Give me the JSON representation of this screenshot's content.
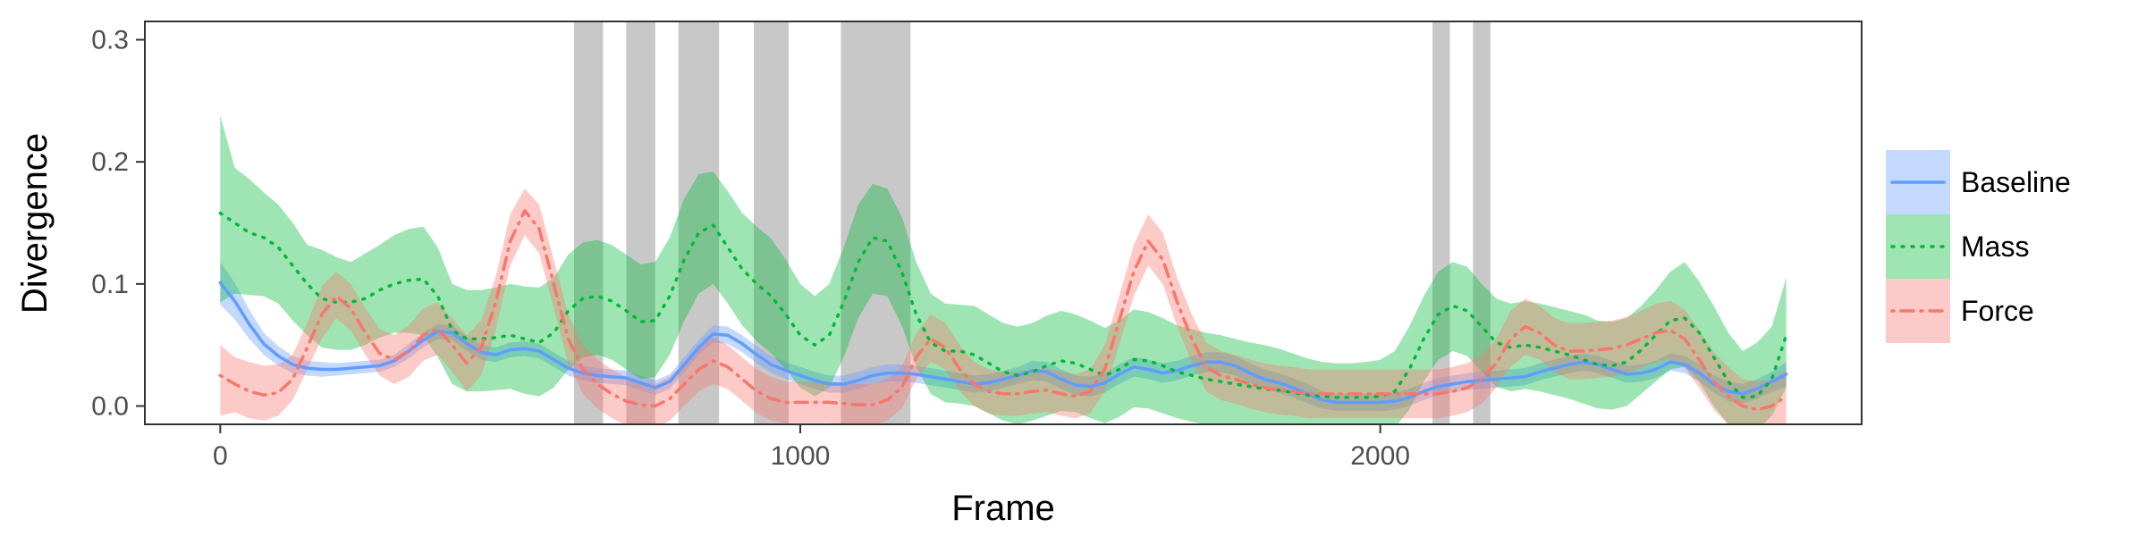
{
  "chart_data": {
    "type": "line",
    "xlabel": "Frame",
    "ylabel": "Divergence",
    "xlim": [
      -130,
      2830
    ],
    "ylim": [
      -0.015,
      0.315
    ],
    "x_ticks": [
      0,
      1000,
      2000
    ],
    "x_tick_labels": [
      "0",
      "1000",
      "2000"
    ],
    "y_ticks": [
      0.0,
      0.1,
      0.2,
      0.3
    ],
    "y_tick_labels": [
      "0.0",
      "0.1",
      "0.2",
      "0.3"
    ],
    "grid": false,
    "legend_position": "right",
    "shaded_regions": [
      [
        610,
        660
      ],
      [
        700,
        750
      ],
      [
        790,
        860
      ],
      [
        920,
        980
      ],
      [
        1070,
        1190
      ],
      [
        2090,
        2120
      ],
      [
        2160,
        2190
      ]
    ],
    "shade_color": "#c8c8c8",
    "x": [
      0,
      25,
      50,
      75,
      100,
      125,
      150,
      175,
      200,
      225,
      250,
      275,
      300,
      325,
      350,
      375,
      400,
      425,
      450,
      475,
      500,
      525,
      550,
      575,
      600,
      625,
      650,
      675,
      700,
      725,
      750,
      775,
      800,
      825,
      850,
      875,
      900,
      925,
      950,
      975,
      1000,
      1025,
      1050,
      1075,
      1100,
      1125,
      1150,
      1175,
      1200,
      1225,
      1250,
      1275,
      1300,
      1325,
      1350,
      1375,
      1400,
      1425,
      1450,
      1475,
      1500,
      1525,
      1550,
      1575,
      1600,
      1625,
      1650,
      1675,
      1700,
      1725,
      1750,
      1775,
      1800,
      1825,
      1850,
      1875,
      1900,
      1925,
      1950,
      1975,
      2000,
      2025,
      2050,
      2075,
      2100,
      2125,
      2150,
      2175,
      2200,
      2225,
      2250,
      2275,
      2300,
      2325,
      2350,
      2375,
      2400,
      2425,
      2450,
      2475,
      2500,
      2525,
      2550,
      2575,
      2600,
      2625,
      2650,
      2675,
      2700
    ],
    "series": [
      {
        "name": "Baseline",
        "color": "#619cff",
        "line_style": "solid",
        "values": [
          0.101,
          0.086,
          0.067,
          0.051,
          0.041,
          0.034,
          0.031,
          0.03,
          0.03,
          0.031,
          0.032,
          0.033,
          0.037,
          0.045,
          0.054,
          0.061,
          0.06,
          0.051,
          0.044,
          0.042,
          0.046,
          0.047,
          0.045,
          0.038,
          0.031,
          0.027,
          0.025,
          0.024,
          0.023,
          0.019,
          0.015,
          0.02,
          0.034,
          0.048,
          0.059,
          0.058,
          0.051,
          0.042,
          0.034,
          0.029,
          0.025,
          0.021,
          0.018,
          0.018,
          0.021,
          0.025,
          0.027,
          0.027,
          0.026,
          0.024,
          0.022,
          0.02,
          0.018,
          0.019,
          0.022,
          0.025,
          0.029,
          0.028,
          0.022,
          0.017,
          0.016,
          0.019,
          0.026,
          0.032,
          0.03,
          0.027,
          0.029,
          0.033,
          0.036,
          0.036,
          0.033,
          0.027,
          0.022,
          0.019,
          0.015,
          0.01,
          0.005,
          0.003,
          0.003,
          0.003,
          0.003,
          0.004,
          0.007,
          0.012,
          0.016,
          0.018,
          0.02,
          0.021,
          0.022,
          0.023,
          0.024,
          0.028,
          0.031,
          0.034,
          0.036,
          0.034,
          0.03,
          0.026,
          0.027,
          0.03,
          0.036,
          0.034,
          0.027,
          0.018,
          0.012,
          0.01,
          0.014,
          0.02,
          0.026
        ],
        "lower": [
          0.083,
          0.071,
          0.055,
          0.042,
          0.033,
          0.027,
          0.025,
          0.024,
          0.025,
          0.026,
          0.027,
          0.028,
          0.032,
          0.039,
          0.048,
          0.055,
          0.054,
          0.045,
          0.038,
          0.036,
          0.04,
          0.041,
          0.039,
          0.032,
          0.025,
          0.021,
          0.019,
          0.018,
          0.017,
          0.013,
          0.009,
          0.014,
          0.028,
          0.042,
          0.052,
          0.051,
          0.044,
          0.035,
          0.027,
          0.022,
          0.018,
          0.014,
          0.011,
          0.011,
          0.014,
          0.018,
          0.02,
          0.02,
          0.019,
          0.017,
          0.015,
          0.013,
          0.011,
          0.012,
          0.015,
          0.018,
          0.021,
          0.02,
          0.014,
          0.009,
          0.008,
          0.011,
          0.018,
          0.024,
          0.022,
          0.019,
          0.021,
          0.025,
          0.028,
          0.028,
          0.025,
          0.019,
          0.014,
          0.011,
          0.007,
          0.002,
          -0.002,
          -0.004,
          -0.004,
          -0.004,
          -0.004,
          -0.003,
          0.0,
          0.005,
          0.009,
          0.011,
          0.013,
          0.014,
          0.015,
          0.016,
          0.017,
          0.021,
          0.024,
          0.027,
          0.029,
          0.027,
          0.023,
          0.019,
          0.02,
          0.023,
          0.029,
          0.027,
          0.02,
          0.011,
          0.004,
          0.002,
          0.006,
          0.012,
          0.016
        ],
        "upper": [
          0.118,
          0.101,
          0.079,
          0.06,
          0.049,
          0.041,
          0.037,
          0.036,
          0.035,
          0.036,
          0.037,
          0.038,
          0.042,
          0.051,
          0.06,
          0.067,
          0.066,
          0.057,
          0.05,
          0.048,
          0.052,
          0.053,
          0.051,
          0.044,
          0.037,
          0.033,
          0.031,
          0.03,
          0.029,
          0.025,
          0.021,
          0.026,
          0.04,
          0.054,
          0.066,
          0.065,
          0.058,
          0.049,
          0.041,
          0.036,
          0.032,
          0.028,
          0.025,
          0.025,
          0.028,
          0.032,
          0.034,
          0.034,
          0.033,
          0.031,
          0.029,
          0.027,
          0.025,
          0.026,
          0.029,
          0.032,
          0.037,
          0.036,
          0.03,
          0.025,
          0.024,
          0.027,
          0.034,
          0.04,
          0.038,
          0.035,
          0.037,
          0.041,
          0.044,
          0.044,
          0.041,
          0.035,
          0.03,
          0.027,
          0.023,
          0.018,
          0.012,
          0.01,
          0.01,
          0.01,
          0.01,
          0.011,
          0.014,
          0.019,
          0.023,
          0.025,
          0.027,
          0.028,
          0.029,
          0.03,
          0.031,
          0.035,
          0.038,
          0.041,
          0.043,
          0.041,
          0.037,
          0.033,
          0.034,
          0.037,
          0.043,
          0.041,
          0.034,
          0.025,
          0.02,
          0.018,
          0.022,
          0.028,
          0.036
        ]
      },
      {
        "name": "Mass",
        "color": "#00ba38",
        "line_style": "dotted",
        "values": [
          0.158,
          0.15,
          0.142,
          0.138,
          0.13,
          0.115,
          0.1,
          0.088,
          0.085,
          0.085,
          0.088,
          0.095,
          0.1,
          0.103,
          0.104,
          0.09,
          0.062,
          0.055,
          0.055,
          0.056,
          0.058,
          0.055,
          0.052,
          0.06,
          0.078,
          0.088,
          0.09,
          0.086,
          0.078,
          0.069,
          0.07,
          0.09,
          0.12,
          0.142,
          0.148,
          0.13,
          0.112,
          0.1,
          0.09,
          0.075,
          0.058,
          0.05,
          0.058,
          0.085,
          0.118,
          0.138,
          0.135,
          0.11,
          0.075,
          0.052,
          0.045,
          0.045,
          0.042,
          0.035,
          0.028,
          0.025,
          0.028,
          0.033,
          0.037,
          0.035,
          0.03,
          0.025,
          0.03,
          0.038,
          0.037,
          0.033,
          0.028,
          0.025,
          0.022,
          0.02,
          0.018,
          0.016,
          0.014,
          0.013,
          0.011,
          0.009,
          0.008,
          0.007,
          0.007,
          0.007,
          0.008,
          0.012,
          0.03,
          0.055,
          0.075,
          0.082,
          0.078,
          0.065,
          0.052,
          0.048,
          0.05,
          0.048,
          0.045,
          0.042,
          0.038,
          0.034,
          0.033,
          0.036,
          0.046,
          0.058,
          0.07,
          0.072,
          0.06,
          0.04,
          0.02,
          0.007,
          0.008,
          0.022,
          0.058
        ],
        "lower": [
          0.085,
          0.092,
          0.091,
          0.09,
          0.084,
          0.07,
          0.058,
          0.048,
          0.046,
          0.046,
          0.05,
          0.056,
          0.06,
          0.06,
          0.058,
          0.04,
          0.018,
          0.012,
          0.012,
          0.013,
          0.014,
          0.01,
          0.008,
          0.015,
          0.03,
          0.04,
          0.042,
          0.038,
          0.03,
          0.022,
          0.024,
          0.042,
          0.07,
          0.092,
          0.1,
          0.084,
          0.066,
          0.053,
          0.043,
          0.03,
          0.015,
          0.008,
          0.015,
          0.04,
          0.072,
          0.092,
          0.09,
          0.066,
          0.032,
          0.01,
          0.003,
          0.002,
          0.0,
          -0.006,
          -0.012,
          -0.015,
          -0.012,
          -0.008,
          -0.004,
          -0.005,
          -0.01,
          -0.014,
          -0.009,
          -0.001,
          -0.002,
          -0.006,
          -0.01,
          -0.013,
          -0.015,
          -0.016,
          -0.017,
          -0.018,
          -0.019,
          -0.02,
          -0.02,
          -0.021,
          -0.022,
          -0.022,
          -0.022,
          -0.022,
          -0.021,
          -0.018,
          -0.003,
          0.02,
          0.038,
          0.045,
          0.041,
          0.028,
          0.016,
          0.012,
          0.014,
          0.012,
          0.009,
          0.006,
          0.002,
          -0.002,
          -0.003,
          0.0,
          0.01,
          0.02,
          0.03,
          0.032,
          0.02,
          0.0,
          -0.015,
          -0.022,
          -0.02,
          -0.008,
          0.015
        ],
        "upper": [
          0.238,
          0.195,
          0.186,
          0.175,
          0.165,
          0.15,
          0.132,
          0.128,
          0.122,
          0.118,
          0.125,
          0.132,
          0.14,
          0.145,
          0.147,
          0.13,
          0.1,
          0.095,
          0.095,
          0.097,
          0.1,
          0.098,
          0.097,
          0.105,
          0.124,
          0.134,
          0.136,
          0.132,
          0.124,
          0.116,
          0.118,
          0.138,
          0.17,
          0.19,
          0.192,
          0.176,
          0.158,
          0.147,
          0.137,
          0.12,
          0.1,
          0.09,
          0.1,
          0.13,
          0.165,
          0.182,
          0.178,
          0.155,
          0.118,
          0.092,
          0.084,
          0.083,
          0.082,
          0.075,
          0.068,
          0.065,
          0.068,
          0.074,
          0.078,
          0.075,
          0.07,
          0.064,
          0.07,
          0.079,
          0.077,
          0.072,
          0.066,
          0.063,
          0.06,
          0.058,
          0.055,
          0.052,
          0.05,
          0.047,
          0.043,
          0.039,
          0.036,
          0.035,
          0.035,
          0.036,
          0.038,
          0.045,
          0.065,
          0.09,
          0.11,
          0.118,
          0.114,
          0.1,
          0.088,
          0.084,
          0.086,
          0.084,
          0.081,
          0.078,
          0.075,
          0.07,
          0.069,
          0.072,
          0.082,
          0.095,
          0.11,
          0.118,
          0.102,
          0.082,
          0.06,
          0.045,
          0.052,
          0.065,
          0.105
        ]
      },
      {
        "name": "Force",
        "color": "#f8766d",
        "line_style": "dotdash",
        "values": [
          0.025,
          0.018,
          0.012,
          0.009,
          0.011,
          0.022,
          0.048,
          0.075,
          0.09,
          0.08,
          0.06,
          0.043,
          0.038,
          0.045,
          0.058,
          0.063,
          0.05,
          0.035,
          0.048,
          0.085,
          0.135,
          0.16,
          0.145,
          0.1,
          0.055,
          0.03,
          0.018,
          0.01,
          0.004,
          0.001,
          0.0,
          0.006,
          0.018,
          0.03,
          0.037,
          0.032,
          0.022,
          0.012,
          0.006,
          0.003,
          0.003,
          0.003,
          0.003,
          0.002,
          0.001,
          0.001,
          0.005,
          0.015,
          0.04,
          0.055,
          0.048,
          0.03,
          0.018,
          0.012,
          0.01,
          0.01,
          0.012,
          0.013,
          0.01,
          0.008,
          0.012,
          0.03,
          0.07,
          0.11,
          0.135,
          0.12,
          0.085,
          0.055,
          0.032,
          0.025,
          0.022,
          0.018,
          0.015,
          0.013,
          0.012,
          0.01,
          0.01,
          0.01,
          0.01,
          0.01,
          0.01,
          0.01,
          0.01,
          0.01,
          0.01,
          0.012,
          0.015,
          0.022,
          0.035,
          0.055,
          0.065,
          0.06,
          0.05,
          0.045,
          0.045,
          0.046,
          0.047,
          0.05,
          0.055,
          0.06,
          0.062,
          0.055,
          0.038,
          0.02,
          0.008,
          0.0,
          -0.003,
          0.0,
          0.008
        ],
        "lower": [
          -0.008,
          -0.005,
          -0.01,
          -0.012,
          -0.008,
          0.005,
          0.03,
          0.055,
          0.072,
          0.062,
          0.042,
          0.025,
          0.018,
          0.024,
          0.037,
          0.042,
          0.028,
          0.012,
          0.025,
          0.062,
          0.115,
          0.14,
          0.125,
          0.08,
          0.035,
          0.01,
          -0.002,
          -0.01,
          -0.016,
          -0.018,
          -0.018,
          -0.012,
          0.0,
          0.012,
          0.018,
          0.014,
          0.004,
          -0.006,
          -0.012,
          -0.014,
          -0.014,
          -0.014,
          -0.014,
          -0.015,
          -0.016,
          -0.016,
          -0.012,
          -0.002,
          0.022,
          0.036,
          0.03,
          0.012,
          0.0,
          -0.006,
          -0.008,
          -0.008,
          -0.006,
          -0.005,
          -0.008,
          -0.01,
          -0.006,
          0.012,
          0.05,
          0.09,
          0.115,
          0.1,
          0.065,
          0.035,
          0.012,
          0.005,
          0.002,
          -0.002,
          -0.005,
          -0.007,
          -0.008,
          -0.01,
          -0.01,
          -0.01,
          -0.01,
          -0.01,
          -0.01,
          -0.01,
          -0.01,
          -0.01,
          -0.01,
          -0.008,
          -0.005,
          0.002,
          0.015,
          0.032,
          0.042,
          0.038,
          0.028,
          0.022,
          0.022,
          0.023,
          0.024,
          0.027,
          0.031,
          0.036,
          0.038,
          0.031,
          0.015,
          -0.003,
          -0.015,
          -0.022,
          -0.025,
          -0.022,
          -0.015
        ],
        "upper": [
          0.05,
          0.04,
          0.036,
          0.033,
          0.034,
          0.042,
          0.068,
          0.098,
          0.11,
          0.1,
          0.08,
          0.063,
          0.058,
          0.066,
          0.08,
          0.085,
          0.072,
          0.058,
          0.07,
          0.106,
          0.157,
          0.178,
          0.165,
          0.12,
          0.075,
          0.05,
          0.038,
          0.03,
          0.024,
          0.02,
          0.018,
          0.024,
          0.036,
          0.05,
          0.056,
          0.05,
          0.04,
          0.03,
          0.024,
          0.02,
          0.02,
          0.02,
          0.02,
          0.019,
          0.018,
          0.018,
          0.022,
          0.032,
          0.06,
          0.075,
          0.068,
          0.05,
          0.036,
          0.03,
          0.028,
          0.028,
          0.03,
          0.031,
          0.028,
          0.026,
          0.03,
          0.05,
          0.09,
          0.132,
          0.157,
          0.142,
          0.105,
          0.075,
          0.052,
          0.045,
          0.042,
          0.038,
          0.035,
          0.033,
          0.032,
          0.03,
          0.03,
          0.03,
          0.03,
          0.03,
          0.03,
          0.03,
          0.03,
          0.03,
          0.03,
          0.032,
          0.035,
          0.042,
          0.055,
          0.078,
          0.088,
          0.082,
          0.072,
          0.068,
          0.068,
          0.069,
          0.07,
          0.073,
          0.078,
          0.084,
          0.086,
          0.079,
          0.062,
          0.044,
          0.032,
          0.022,
          0.02,
          0.022,
          0.03
        ]
      }
    ]
  }
}
